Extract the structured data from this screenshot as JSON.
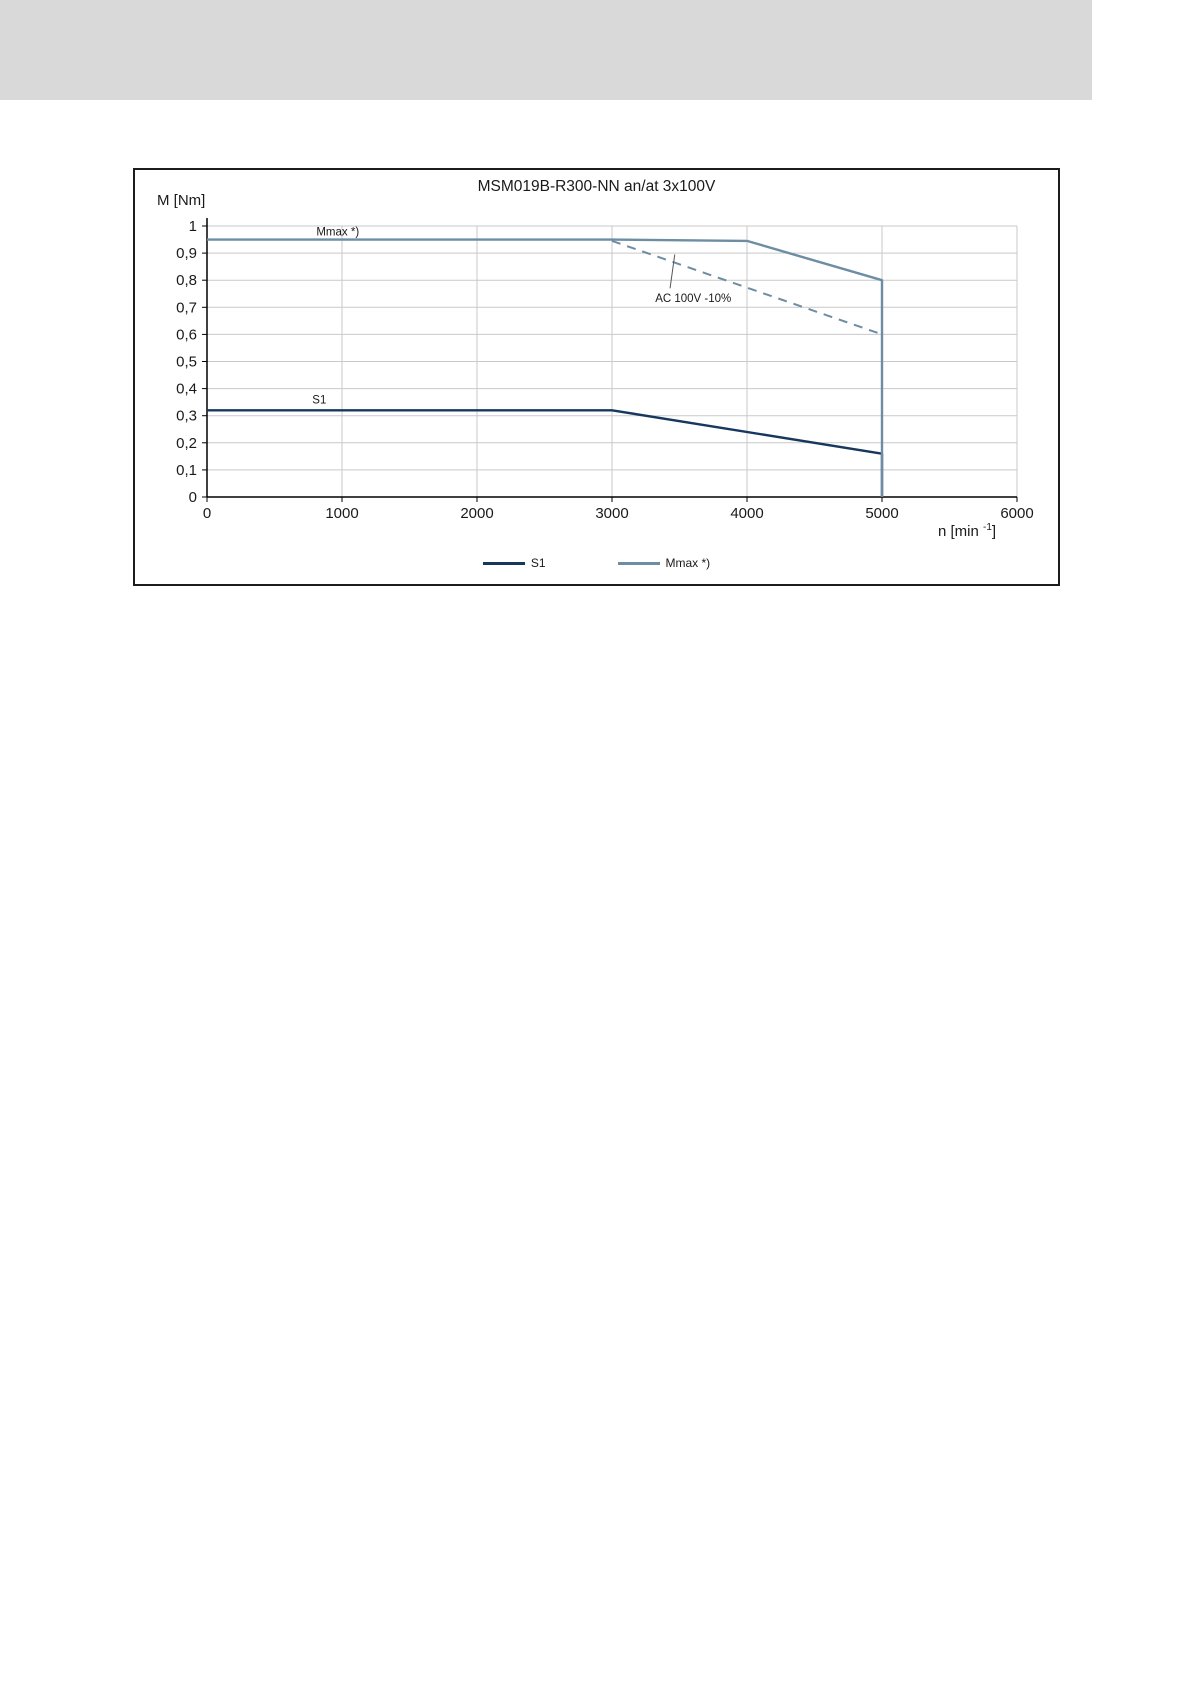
{
  "page": {
    "header_band_color": "#d9d9d9"
  },
  "chart_data": {
    "type": "line",
    "title": "MSM019B-R300-NN an/at 3x100V",
    "ylabel": "M [Nm]",
    "xlabel": {
      "pre": "n [min ",
      "sup": "-1",
      "post": "]"
    },
    "xlim": [
      0,
      6000
    ],
    "ylim": [
      0,
      1
    ],
    "grid": true,
    "legend_position": "bottom",
    "xticks": [
      {
        "v": 0,
        "label": "0"
      },
      {
        "v": 1000,
        "label": "1000"
      },
      {
        "v": 2000,
        "label": "2000"
      },
      {
        "v": 3000,
        "label": "3000"
      },
      {
        "v": 4000,
        "label": "4000"
      },
      {
        "v": 5000,
        "label": "5000"
      },
      {
        "v": 6000,
        "label": "6000"
      }
    ],
    "yticks": [
      {
        "v": 0,
        "label": "0"
      },
      {
        "v": 0.1,
        "label": "0,1"
      },
      {
        "v": 0.2,
        "label": "0,2"
      },
      {
        "v": 0.3,
        "label": "0,3"
      },
      {
        "v": 0.4,
        "label": "0,4"
      },
      {
        "v": 0.5,
        "label": "0,5"
      },
      {
        "v": 0.6,
        "label": "0,6"
      },
      {
        "v": 0.7,
        "label": "0,7"
      },
      {
        "v": 0.8,
        "label": "0,8"
      },
      {
        "v": 0.9,
        "label": "0,9"
      },
      {
        "v": 1,
        "label": "1"
      }
    ],
    "series": [
      {
        "name": "S1",
        "color": "#17375E",
        "dash": null,
        "points": [
          [
            0,
            0.32
          ],
          [
            3000,
            0.32
          ],
          [
            5000,
            0.16
          ],
          [
            5000,
            0
          ]
        ]
      },
      {
        "name": "Mmax *)",
        "color": "#6C8DA3",
        "dash": null,
        "points": [
          [
            0,
            0.95
          ],
          [
            3000,
            0.95
          ],
          [
            4000,
            0.945
          ],
          [
            5000,
            0.8
          ],
          [
            5000,
            0
          ]
        ]
      },
      {
        "name": "AC 100V -10%",
        "color": "#6C8DA3",
        "dash": "9 7",
        "points": [
          [
            3000,
            0.945
          ],
          [
            5000,
            0.6
          ]
        ]
      }
    ],
    "annotations": [
      {
        "text": "Mmax *)",
        "x": 810,
        "y": 0.965,
        "anchor": "start"
      },
      {
        "text": "S1",
        "x": 780,
        "y": 0.345,
        "anchor": "start"
      },
      {
        "text": "AC 100V -10%",
        "x": 3320,
        "y": 0.72,
        "anchor": "start"
      }
    ],
    "leader_line": {
      "x1": 3430,
      "y1": 0.77,
      "x2": 3465,
      "y2": 0.895
    },
    "legend": [
      {
        "label": "S1",
        "series": 0
      },
      {
        "label": "Mmax *)",
        "series": 1
      }
    ]
  }
}
